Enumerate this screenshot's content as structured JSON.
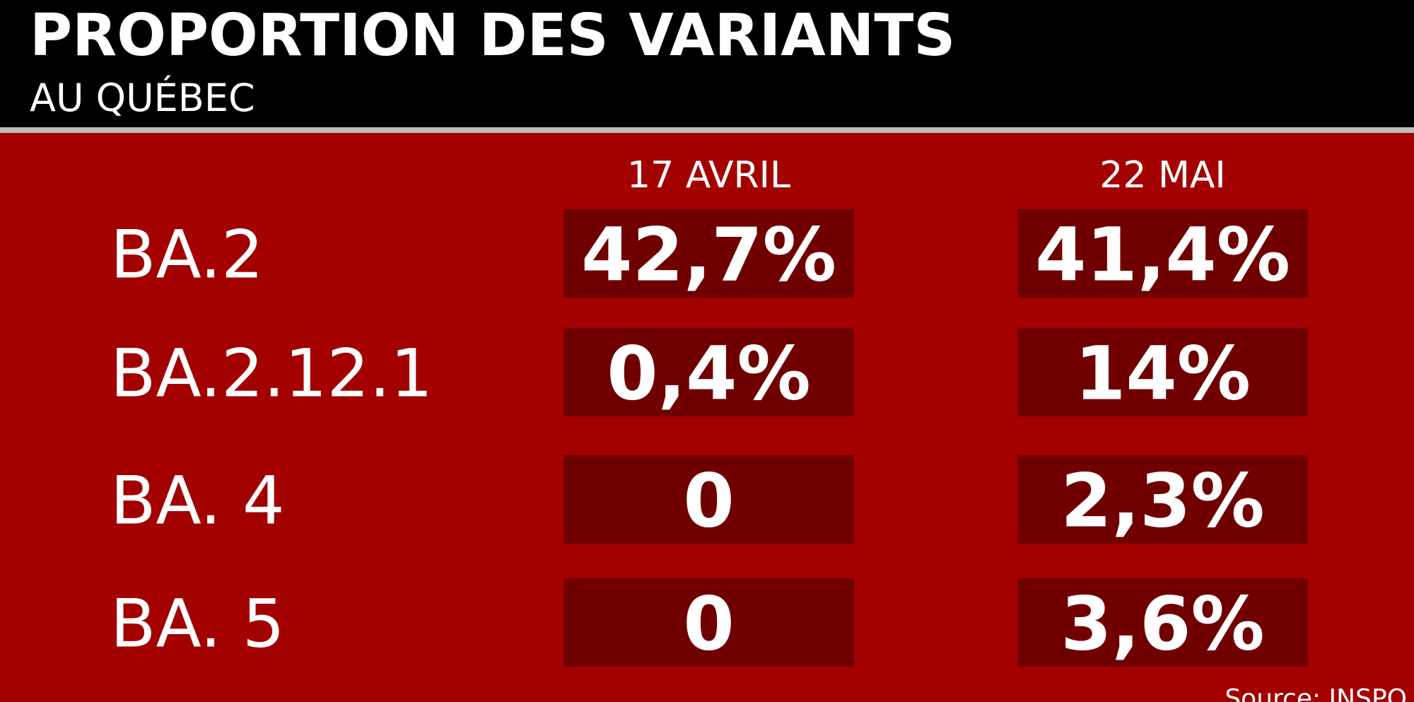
{
  "header": {
    "title": "PROPORTION DES VARIANTS",
    "subtitle": "AU QUÉBEC"
  },
  "table": {
    "columns": [
      "17 AVRIL",
      "22 MAI"
    ],
    "rows": [
      {
        "label": "BA.2",
        "values": [
          "42,7%",
          "41,4%"
        ]
      },
      {
        "label": "BA.2.12.1",
        "values": [
          "0,4%",
          "14%"
        ]
      },
      {
        "label": "BA. 4",
        "values": [
          "0",
          "2,3%"
        ]
      },
      {
        "label": "BA. 5",
        "values": [
          "0",
          "3,6%"
        ]
      }
    ]
  },
  "source": "Source: INSPQ"
}
